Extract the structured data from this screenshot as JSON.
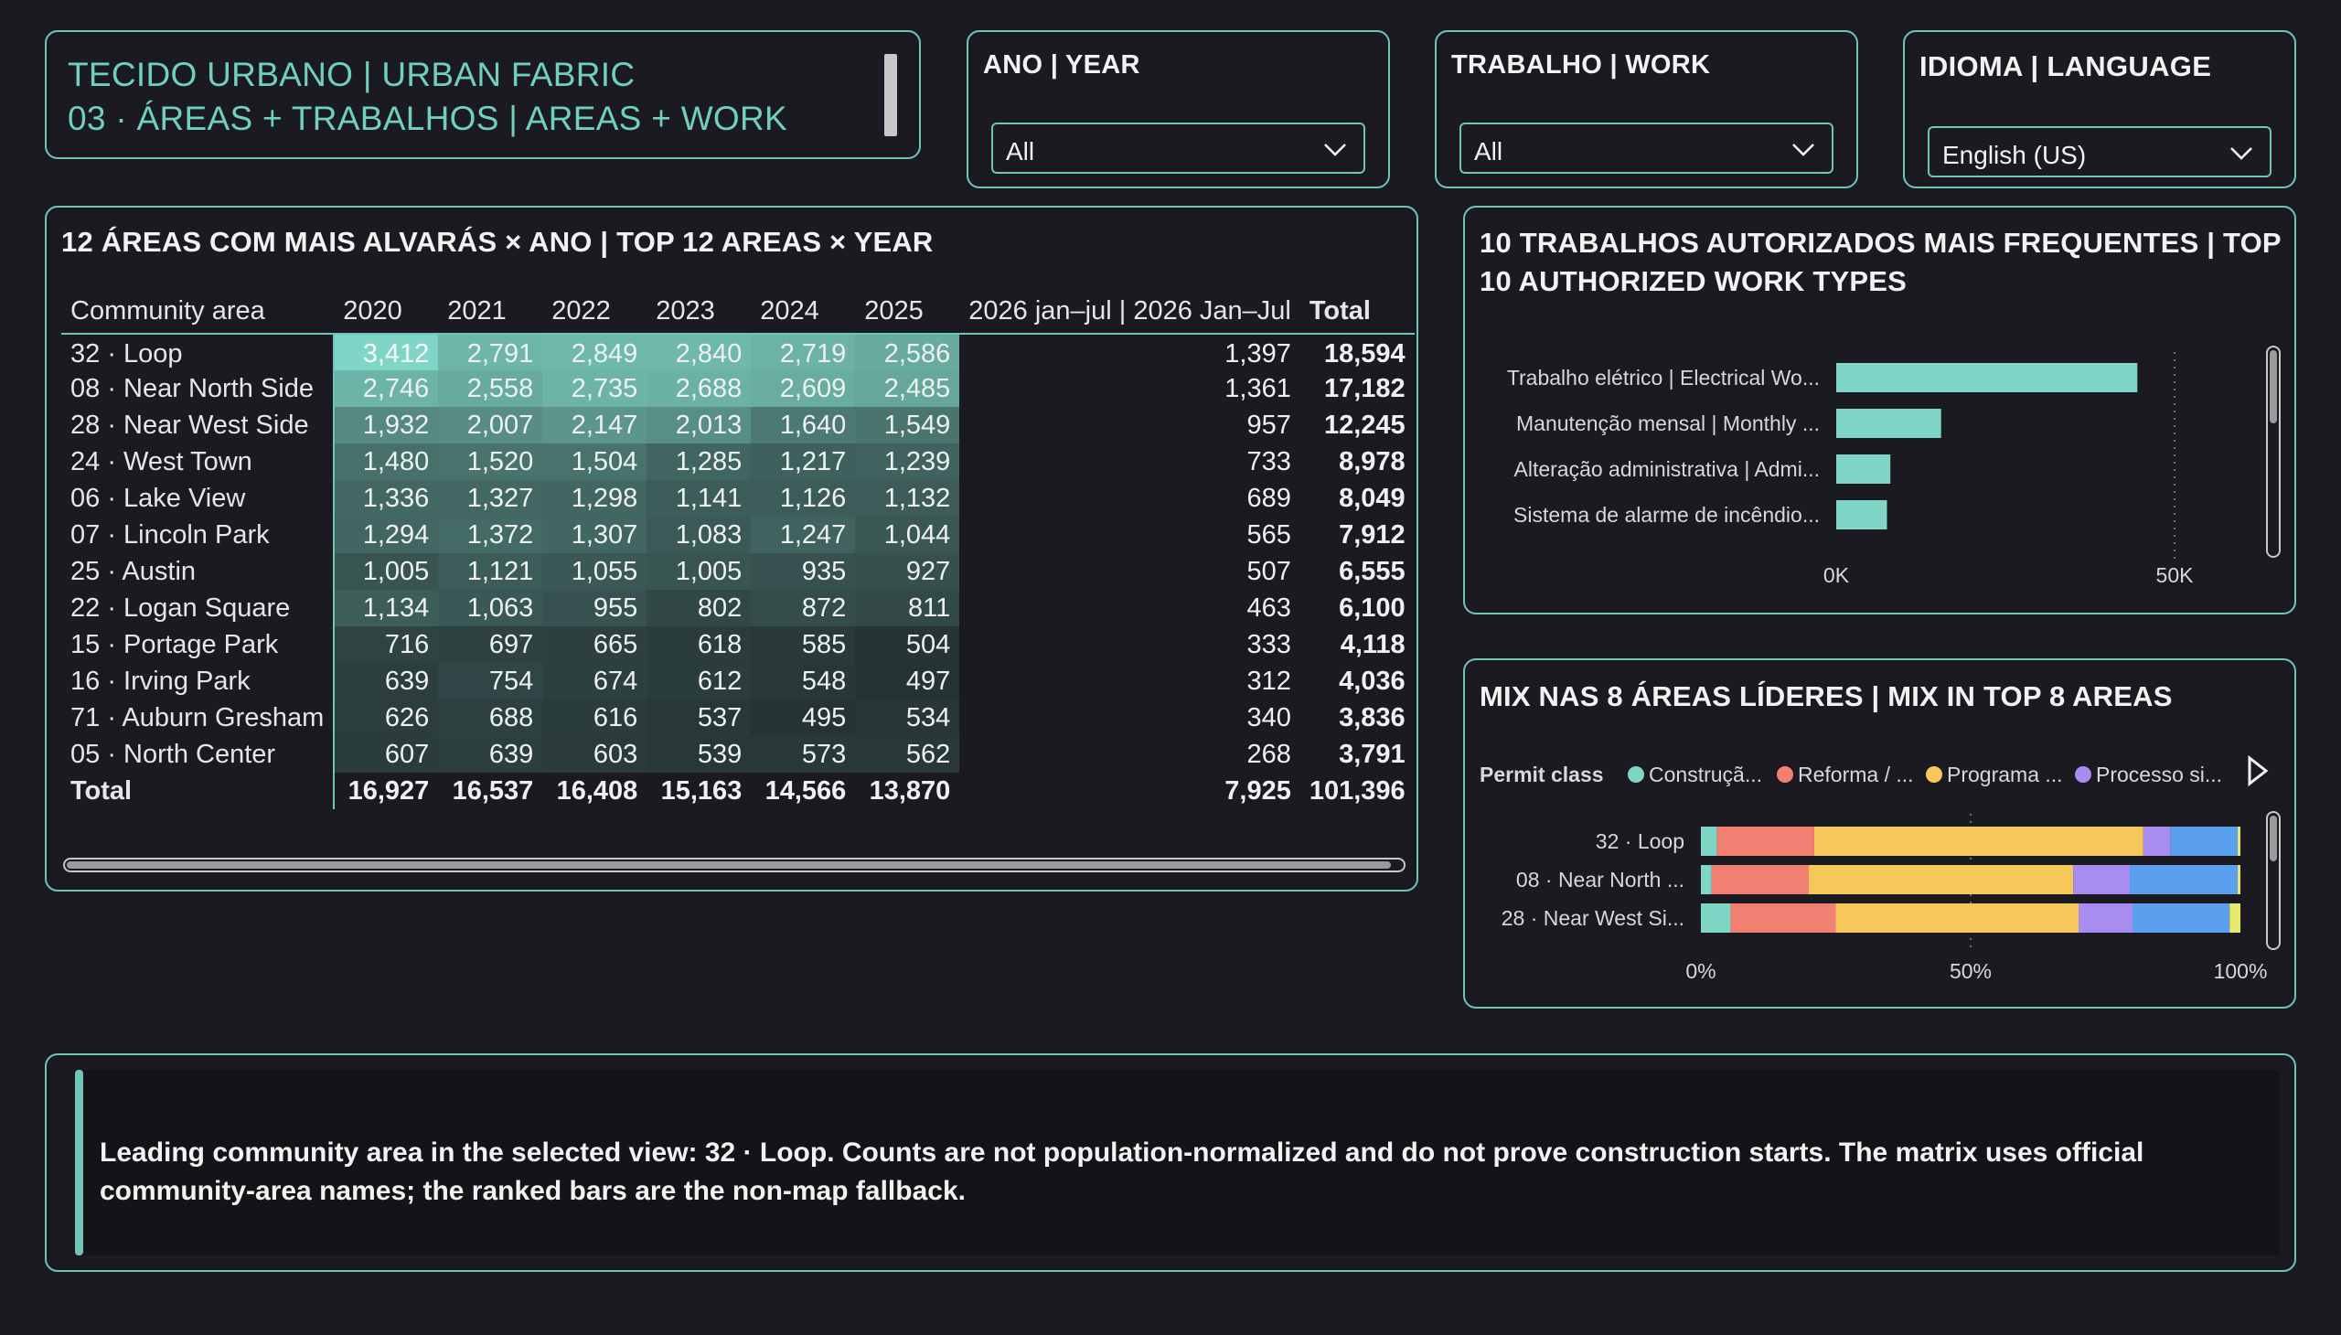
{
  "header": {
    "title_line1": "TECIDO URBANO | URBAN FABRIC",
    "title_line2": "03 · ÁREAS + TRABALHOS | AREAS + WORK"
  },
  "slicers": {
    "year": {
      "label": "ANO | YEAR",
      "value": "All"
    },
    "work": {
      "label": "TRABALHO | WORK",
      "value": "All"
    },
    "language": {
      "label": "IDIOMA | LANGUAGE",
      "value": "English (US)"
    }
  },
  "matrix": {
    "title": "12 ÁREAS COM MAIS ALVARÁS × ANO | TOP 12 AREAS × YEAR",
    "row_header": "Community area",
    "columns": [
      "2020",
      "2021",
      "2022",
      "2023",
      "2024",
      "2025",
      "2026 jan–jul | 2026 Jan–Jul"
    ],
    "total_label": "Total",
    "rows": [
      {
        "name": "32 · Loop",
        "values": [
          "3,412",
          "2,791",
          "2,849",
          "2,840",
          "2,719",
          "2,586",
          "1,397"
        ],
        "raw": [
          3412,
          2791,
          2849,
          2840,
          2719,
          2586,
          1397
        ],
        "total": "18,594"
      },
      {
        "name": "08 · Near North Side",
        "values": [
          "2,746",
          "2,558",
          "2,735",
          "2,688",
          "2,609",
          "2,485",
          "1,361"
        ],
        "raw": [
          2746,
          2558,
          2735,
          2688,
          2609,
          2485,
          1361
        ],
        "total": "17,182"
      },
      {
        "name": "28 · Near West Side",
        "values": [
          "1,932",
          "2,007",
          "2,147",
          "2,013",
          "1,640",
          "1,549",
          "957"
        ],
        "raw": [
          1932,
          2007,
          2147,
          2013,
          1640,
          1549,
          957
        ],
        "total": "12,245"
      },
      {
        "name": "24 · West Town",
        "values": [
          "1,480",
          "1,520",
          "1,504",
          "1,285",
          "1,217",
          "1,239",
          "733"
        ],
        "raw": [
          1480,
          1520,
          1504,
          1285,
          1217,
          1239,
          733
        ],
        "total": "8,978"
      },
      {
        "name": "06 · Lake View",
        "values": [
          "1,336",
          "1,327",
          "1,298",
          "1,141",
          "1,126",
          "1,132",
          "689"
        ],
        "raw": [
          1336,
          1327,
          1298,
          1141,
          1126,
          1132,
          689
        ],
        "total": "8,049"
      },
      {
        "name": "07 · Lincoln Park",
        "values": [
          "1,294",
          "1,372",
          "1,307",
          "1,083",
          "1,247",
          "1,044",
          "565"
        ],
        "raw": [
          1294,
          1372,
          1307,
          1083,
          1247,
          1044,
          565
        ],
        "total": "7,912"
      },
      {
        "name": "25 · Austin",
        "values": [
          "1,005",
          "1,121",
          "1,055",
          "1,005",
          "935",
          "927",
          "507"
        ],
        "raw": [
          1005,
          1121,
          1055,
          1005,
          935,
          927,
          507
        ],
        "total": "6,555"
      },
      {
        "name": "22 · Logan Square",
        "values": [
          "1,134",
          "1,063",
          "955",
          "802",
          "872",
          "811",
          "463"
        ],
        "raw": [
          1134,
          1063,
          955,
          802,
          872,
          811,
          463
        ],
        "total": "6,100"
      },
      {
        "name": "15 · Portage Park",
        "values": [
          "716",
          "697",
          "665",
          "618",
          "585",
          "504",
          "333"
        ],
        "raw": [
          716,
          697,
          665,
          618,
          585,
          504,
          333
        ],
        "total": "4,118"
      },
      {
        "name": "16 · Irving Park",
        "values": [
          "639",
          "754",
          "674",
          "612",
          "548",
          "497",
          "312"
        ],
        "raw": [
          639,
          754,
          674,
          612,
          548,
          497,
          312
        ],
        "total": "4,036"
      },
      {
        "name": "71 · Auburn Gresham",
        "values": [
          "626",
          "688",
          "616",
          "537",
          "495",
          "534",
          "340"
        ],
        "raw": [
          626,
          688,
          616,
          537,
          495,
          534,
          340
        ],
        "total": "3,836"
      },
      {
        "name": "05 · North Center",
        "values": [
          "607",
          "639",
          "603",
          "539",
          "573",
          "562",
          "268"
        ],
        "raw": [
          607,
          639,
          603,
          539,
          573,
          562,
          268
        ],
        "total": "3,791"
      }
    ],
    "totals": [
      "16,927",
      "16,537",
      "16,408",
      "15,163",
      "14,566",
      "13,870",
      "7,925"
    ],
    "grand_total": "101,396",
    "heat_colors": {
      "low": "#283838",
      "high": "#7fd6c6"
    }
  },
  "chart_data": [
    {
      "type": "bar",
      "orientation": "horizontal",
      "title": "10 TRABALHOS AUTORIZADOS MAIS FREQUENTES | TOP 10 AUTHORIZED WORK TYPES",
      "categories": [
        "Trabalho elétrico | Electrical Wo...",
        "Manutenção mensal | Monthly ...",
        "Alteração administrativa | Admi...",
        "Sistema de alarme de incêndio..."
      ],
      "values": [
        44500,
        15500,
        8000,
        7500
      ],
      "xlim": [
        0,
        50000
      ],
      "xticks": [
        "0K",
        "50K"
      ],
      "color": "#7fd6c6"
    },
    {
      "type": "bar",
      "orientation": "horizontal",
      "stacked": "100%",
      "title": "MIX NAS 8 ÁREAS LÍDERES | MIX IN TOP 8 AREAS",
      "legend_title": "Permit class",
      "categories": [
        "32 · Loop",
        "08 · Near North ...",
        "28 · Near West Si..."
      ],
      "series": [
        {
          "name": "Construçã...",
          "color": "#7fd6c6",
          "values": [
            3,
            2,
            5.5
          ]
        },
        {
          "name": "Reforma / ...",
          "color": "#f28072",
          "values": [
            18,
            18,
            19.5
          ]
        },
        {
          "name": "Programa ...",
          "color": "#f6c75a",
          "values": [
            61,
            49,
            45
          ]
        },
        {
          "name": "Processo si...",
          "color": "#a98cf0",
          "values": [
            5,
            10.5,
            10
          ]
        },
        {
          "name": "",
          "color": "#5aa0ee",
          "values": [
            12.5,
            20,
            18
          ]
        },
        {
          "name": "",
          "color": "#e8e86a",
          "values": [
            0.5,
            0.5,
            2
          ]
        }
      ],
      "xlim": [
        0,
        100
      ],
      "xticks": [
        "0%",
        "50%",
        "100%"
      ]
    }
  ],
  "note": {
    "text": "Leading community area in the selected view: 32 · Loop. Counts are not population-normalized and do not prove construction starts. The matrix uses official community-area names; the ranked bars are the non-map fallback."
  }
}
